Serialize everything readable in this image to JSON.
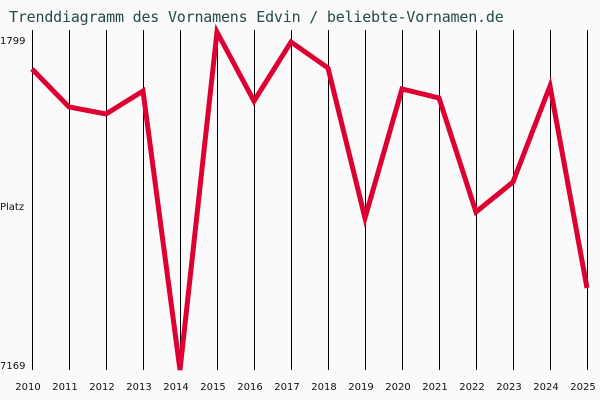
{
  "chart_data": {
    "type": "line",
    "title": "Trenddiagramm des Vornamens Edvin / beliebte-Vornamen.de",
    "xlabel": "",
    "ylabel": "Platz",
    "y_inverted": true,
    "ylim": [
      1799,
      7169
    ],
    "y_tick_labels": [
      "1799",
      "Platz",
      "7169"
    ],
    "grid": {
      "vertical": true,
      "horizontal": false
    },
    "line_color": "#dd0033",
    "categories": [
      "2010",
      "2011",
      "2012",
      "2013",
      "2014",
      "2015",
      "2016",
      "2017",
      "2018",
      "2019",
      "2020",
      "2021",
      "2022",
      "2023",
      "2024",
      "2025"
    ],
    "series": [
      {
        "name": "Edvin",
        "values": [
          2387,
          2991,
          3102,
          2736,
          7169,
          1799,
          2895,
          1958,
          2371,
          4754,
          2704,
          2847,
          4659,
          4182,
          2657,
          5866
        ]
      }
    ]
  }
}
